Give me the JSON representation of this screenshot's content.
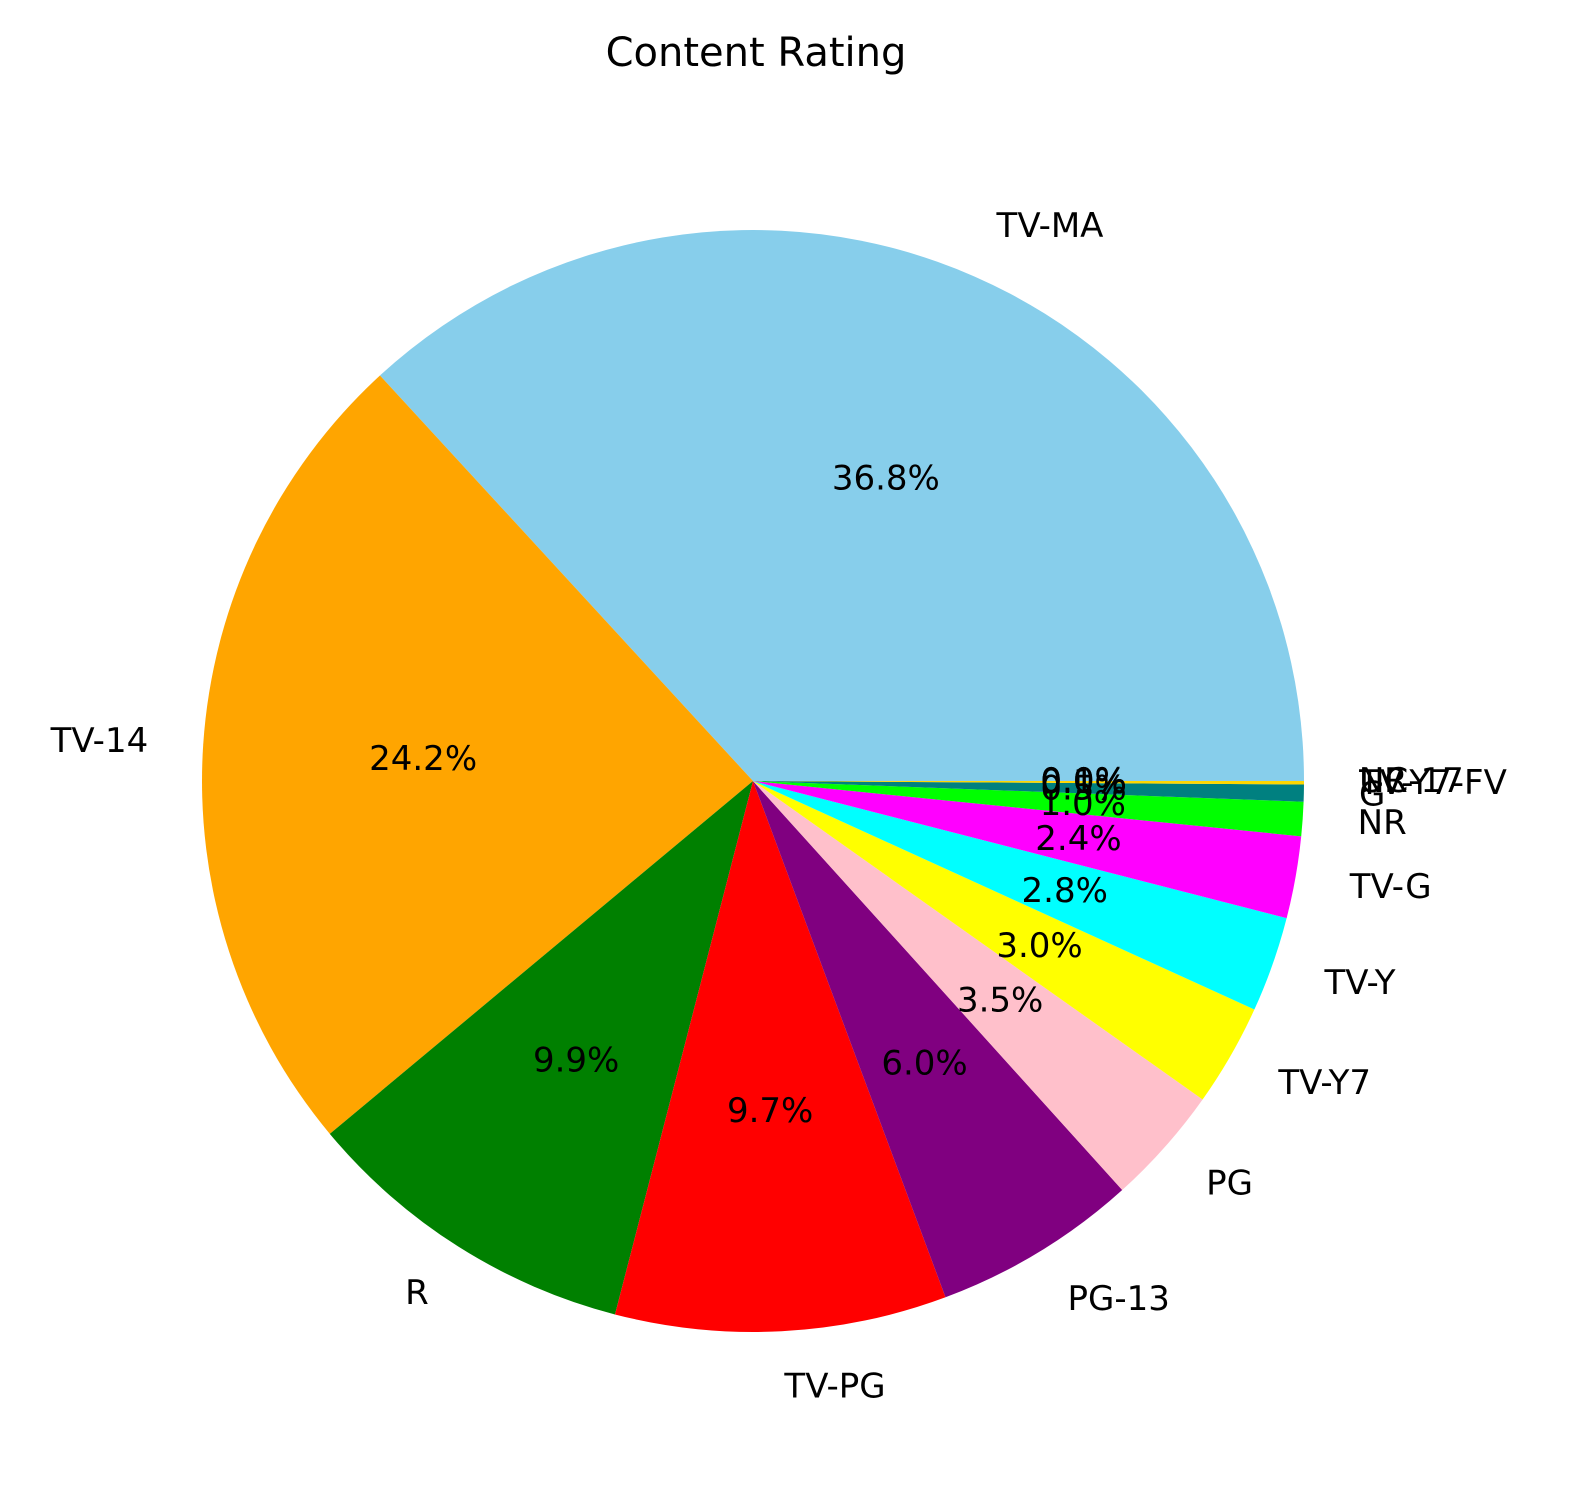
{
  "chart_data": {
    "type": "pie",
    "title": "Content Rating",
    "start_angle_deg": 0,
    "direction": "counterclockwise",
    "slices": [
      {
        "label": "TV-MA",
        "value": 36.8,
        "pct_label": "36.8%",
        "color": "#87CEEB"
      },
      {
        "label": "TV-14",
        "value": 24.2,
        "pct_label": "24.2%",
        "color": "#FFA500"
      },
      {
        "label": "R",
        "value": 9.9,
        "pct_label": "9.9%",
        "color": "#008000"
      },
      {
        "label": "TV-PG",
        "value": 9.7,
        "pct_label": "9.7%",
        "color": "#FF0000"
      },
      {
        "label": "PG-13",
        "value": 6.0,
        "pct_label": "6.0%",
        "color": "#800080"
      },
      {
        "label": "PG",
        "value": 3.5,
        "pct_label": "3.5%",
        "color": "#FFC0CB"
      },
      {
        "label": "TV-Y7",
        "value": 3.0,
        "pct_label": "3.0%",
        "color": "#FFFF00"
      },
      {
        "label": "TV-Y",
        "value": 2.8,
        "pct_label": "2.8%",
        "color": "#00FFFF"
      },
      {
        "label": "TV-G",
        "value": 2.4,
        "pct_label": "2.4%",
        "color": "#FF00FF"
      },
      {
        "label": "NR",
        "value": 1.0,
        "pct_label": "1.0%",
        "color": "#00FF00"
      },
      {
        "label": "G",
        "value": 0.5,
        "pct_label": "0.5%",
        "color": "#008080"
      },
      {
        "label": "TV-Y7-FV",
        "value": 0.1,
        "pct_label": "0.1%",
        "color": "#FFD700"
      },
      {
        "label": "NC-17",
        "value": 0.0,
        "pct_label": "0.0%",
        "color": "#8B4513"
      },
      {
        "label": "UR",
        "value": 0.0,
        "pct_label": "0.0%",
        "color": "#A52A2A"
      }
    ]
  }
}
